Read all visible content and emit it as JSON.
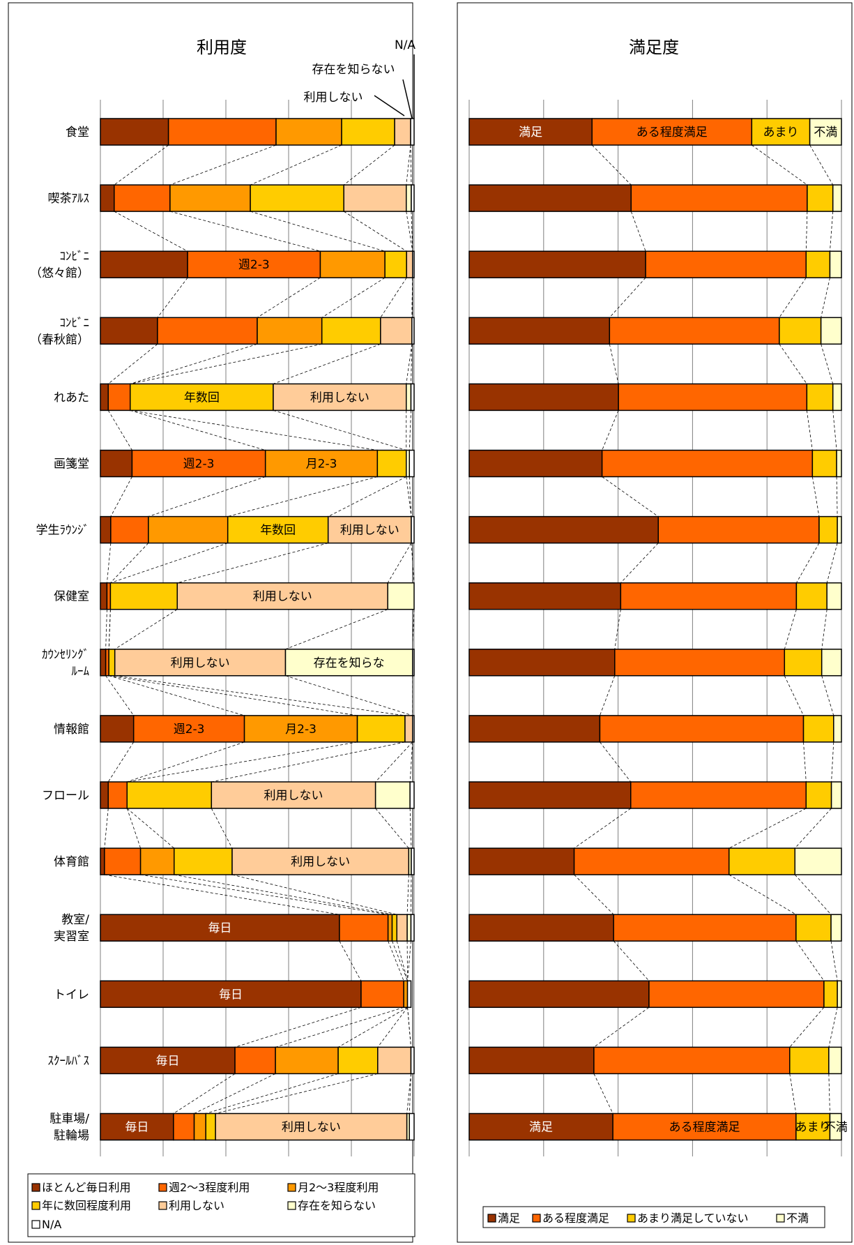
{
  "chart_data": [
    {
      "type": "bar",
      "stacked": true,
      "orientation": "horizontal",
      "title": "利用度",
      "xlim": [
        0,
        100
      ],
      "grid": true,
      "legend_position": "bottom",
      "categories": [
        "食堂",
        "喫茶ｱﾙｽ",
        "ｺﾝﾋﾞﾆ\n（悠々館）",
        "ｺﾝﾋﾞﾆ\n（春秋館）",
        "れあた",
        "画箋堂",
        "学生ﾗｳﾝｼﾞ",
        "保健室",
        "ｶｳﾝｾﾘﾝｸﾞ\nﾙｰﾑ",
        "情報館",
        "フロール",
        "体育館",
        "教室/\n実習室",
        "トイレ",
        "ｽｸｰﾙﾊﾞｽ",
        "駐車場/\n駐輪場"
      ],
      "series": [
        {
          "name": "ほとんど毎日利用",
          "color": "#993300",
          "values": [
            21.7,
            4.4,
            27.8,
            18.2,
            2.5,
            10.1,
            3.3,
            2.1,
            1.7,
            10.6,
            2.5,
            1.3,
            76.2,
            83.1,
            42.9,
            23.3
          ]
        },
        {
          "name": "週2～3程度利用",
          "color": "#FF6600",
          "values": [
            34.3,
            17.8,
            42.3,
            31.8,
            7.0,
            42.5,
            12.0,
            1.1,
            1.0,
            35.3,
            6.0,
            11.5,
            15.5,
            13.6,
            12.9,
            6.6
          ]
        },
        {
          "name": "月2～3程度利用",
          "color": "#FF9900",
          "values": [
            20.9,
            25.6,
            20.6,
            20.6,
            0,
            35.7,
            25.3,
            0,
            0,
            36.0,
            0,
            10.7,
            1.3,
            1.2,
            20.0,
            3.7
          ]
        },
        {
          "name": "年に数回程度利用",
          "color": "#FFCC00",
          "values": [
            16.9,
            29.8,
            6.9,
            18.7,
            45.6,
            9.2,
            32.0,
            21.3,
            1.9,
            15.2,
            26.9,
            18.5,
            1.5,
            0,
            12.6,
            3.1
          ]
        },
        {
          "name": "利用しない",
          "color": "#FFCC99",
          "values": [
            5.1,
            19.9,
            1.9,
            10.0,
            42.4,
            0,
            26.5,
            67.1,
            54.4,
            2.4,
            52.3,
            56.3,
            3.3,
            0,
            10.6,
            61.0
          ]
        },
        {
          "name": "存在を知らない",
          "color": "#FFFFCC",
          "values": [
            0,
            1.6,
            0,
            0,
            1.5,
            1.0,
            0,
            8.4,
            40.5,
            0,
            11.0,
            0.8,
            1.2,
            0,
            0,
            0.8
          ]
        },
        {
          "name": "N/A",
          "color": "#FFFFFF",
          "values": [
            1.1,
            0.9,
            0.5,
            0.7,
            1.0,
            1.5,
            0.9,
            0,
            0.5,
            0.5,
            1.3,
            0.9,
            1.0,
            1.1,
            1.0,
            1.5
          ]
        }
      ],
      "bar_labels": [
        {
          "row": 2,
          "series": 1,
          "text": "週2-3"
        },
        {
          "row": 4,
          "series": 3,
          "text": "年数回"
        },
        {
          "row": 4,
          "series": 4,
          "text": "利用しない"
        },
        {
          "row": 5,
          "series": 1,
          "text": "週2-3"
        },
        {
          "row": 5,
          "series": 2,
          "text": "月2-3"
        },
        {
          "row": 6,
          "series": 3,
          "text": "年数回"
        },
        {
          "row": 6,
          "series": 4,
          "text": "利用しない"
        },
        {
          "row": 7,
          "series": 4,
          "text": "利用しない"
        },
        {
          "row": 8,
          "series": 4,
          "text": "利用しない"
        },
        {
          "row": 8,
          "series": 5,
          "text": "存在を知らな"
        },
        {
          "row": 9,
          "series": 1,
          "text": "週2-3"
        },
        {
          "row": 9,
          "series": 2,
          "text": "月2-3"
        },
        {
          "row": 10,
          "series": 4,
          "text": "利用しない"
        },
        {
          "row": 11,
          "series": 4,
          "text": "利用しない"
        },
        {
          "row": 12,
          "series": 0,
          "text": "毎日"
        },
        {
          "row": 13,
          "series": 0,
          "text": "毎日"
        },
        {
          "row": 14,
          "series": 0,
          "text": "毎日"
        },
        {
          "row": 15,
          "series": 0,
          "text": "毎日"
        },
        {
          "row": 15,
          "series": 4,
          "text": "利用しない"
        }
      ],
      "annotations": [
        "N/A",
        "存在を知らない",
        "利用しない"
      ],
      "legend_labels": [
        "ほとんど毎日利用",
        "週2～3程度利用",
        "月2～3程度利用",
        "年に数回程度利用",
        "利用しない",
        "存在を知らない",
        "N/A"
      ]
    },
    {
      "type": "bar",
      "stacked": true,
      "orientation": "horizontal",
      "title": "満足度",
      "xlim": [
        0,
        100
      ],
      "grid": true,
      "legend_position": "bottom",
      "series": [
        {
          "name": "満足",
          "color": "#993300",
          "values": [
            33.0,
            43.5,
            47.4,
            37.7,
            40.1,
            35.7,
            50.8,
            40.7,
            39.1,
            35.1,
            43.4,
            28.2,
            38.8,
            48.3,
            33.5,
            38.6
          ]
        },
        {
          "name": "ある程度満足",
          "color": "#FF6600",
          "values": [
            42.9,
            47.3,
            43.1,
            45.6,
            50.6,
            56.5,
            43.2,
            47.2,
            45.6,
            54.7,
            47.1,
            41.6,
            49.0,
            47.0,
            52.6,
            49.2
          ]
        },
        {
          "name": "あまり満足していない",
          "color": "#FFCC00",
          "values": [
            15.6,
            6.9,
            6.4,
            11.2,
            7.0,
            6.5,
            4.9,
            8.2,
            10.0,
            8.1,
            6.8,
            17.7,
            9.4,
            3.6,
            10.5,
            9.1
          ]
        },
        {
          "name": "不満",
          "color": "#FFFFCC",
          "values": [
            8.5,
            2.3,
            3.1,
            5.5,
            2.3,
            1.3,
            1.1,
            3.9,
            5.3,
            2.1,
            2.7,
            12.5,
            2.8,
            1.1,
            3.4,
            3.1
          ]
        }
      ],
      "bar_labels": [
        {
          "row": 0,
          "series": 0,
          "text": "満足"
        },
        {
          "row": 0,
          "series": 1,
          "text": "ある程度満足"
        },
        {
          "row": 0,
          "series": 2,
          "text": "あまり"
        },
        {
          "row": 0,
          "series": 3,
          "text": "不満"
        },
        {
          "row": 15,
          "series": 0,
          "text": "満足"
        },
        {
          "row": 15,
          "series": 1,
          "text": "ある程度満足"
        },
        {
          "row": 15,
          "series": 2,
          "text": "あまり"
        },
        {
          "row": 15,
          "series": 3,
          "text": "不満"
        }
      ],
      "legend_labels": [
        "満足",
        "ある程度満足",
        "あまり満足していない",
        "不満"
      ]
    }
  ]
}
